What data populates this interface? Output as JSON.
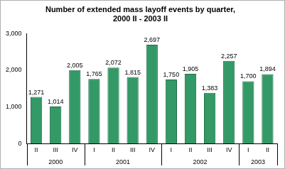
{
  "chart_data": {
    "type": "bar",
    "title": [
      "Number of extended mass layoff events by quarter,",
      "2000 II - 2003 II"
    ],
    "categories": [
      "II",
      "III",
      "IV",
      "I",
      "II",
      "III",
      "IV",
      "I",
      "II",
      "III",
      "IV",
      "I",
      "II"
    ],
    "category_groups": [
      {
        "label": "2000",
        "start": 0,
        "end": 2
      },
      {
        "label": "2001",
        "start": 3,
        "end": 6
      },
      {
        "label": "2002",
        "start": 7,
        "end": 10
      },
      {
        "label": "2003",
        "start": 11,
        "end": 12
      }
    ],
    "values": [
      1271,
      1014,
      2005,
      1765,
      2072,
      1815,
      2697,
      1750,
      1905,
      1383,
      2257,
      1700,
      1894
    ],
    "value_labels": [
      "1,271",
      "1,014",
      "2,005",
      "1,765",
      "2,072",
      "1,815",
      "2,697",
      "1,750",
      "1,905",
      "1,383",
      "2,257",
      "1,700",
      "1,894"
    ],
    "color": "#339966",
    "ylim": [
      0,
      3000
    ],
    "yticks": [
      0,
      {
        "value": 1000,
        "label": "1,000"
      },
      {
        "value": 2000,
        "label": "2,000"
      },
      {
        "value": 3000,
        "label": "3,000"
      }
    ],
    "grid": false,
    "data_labels": true
  }
}
